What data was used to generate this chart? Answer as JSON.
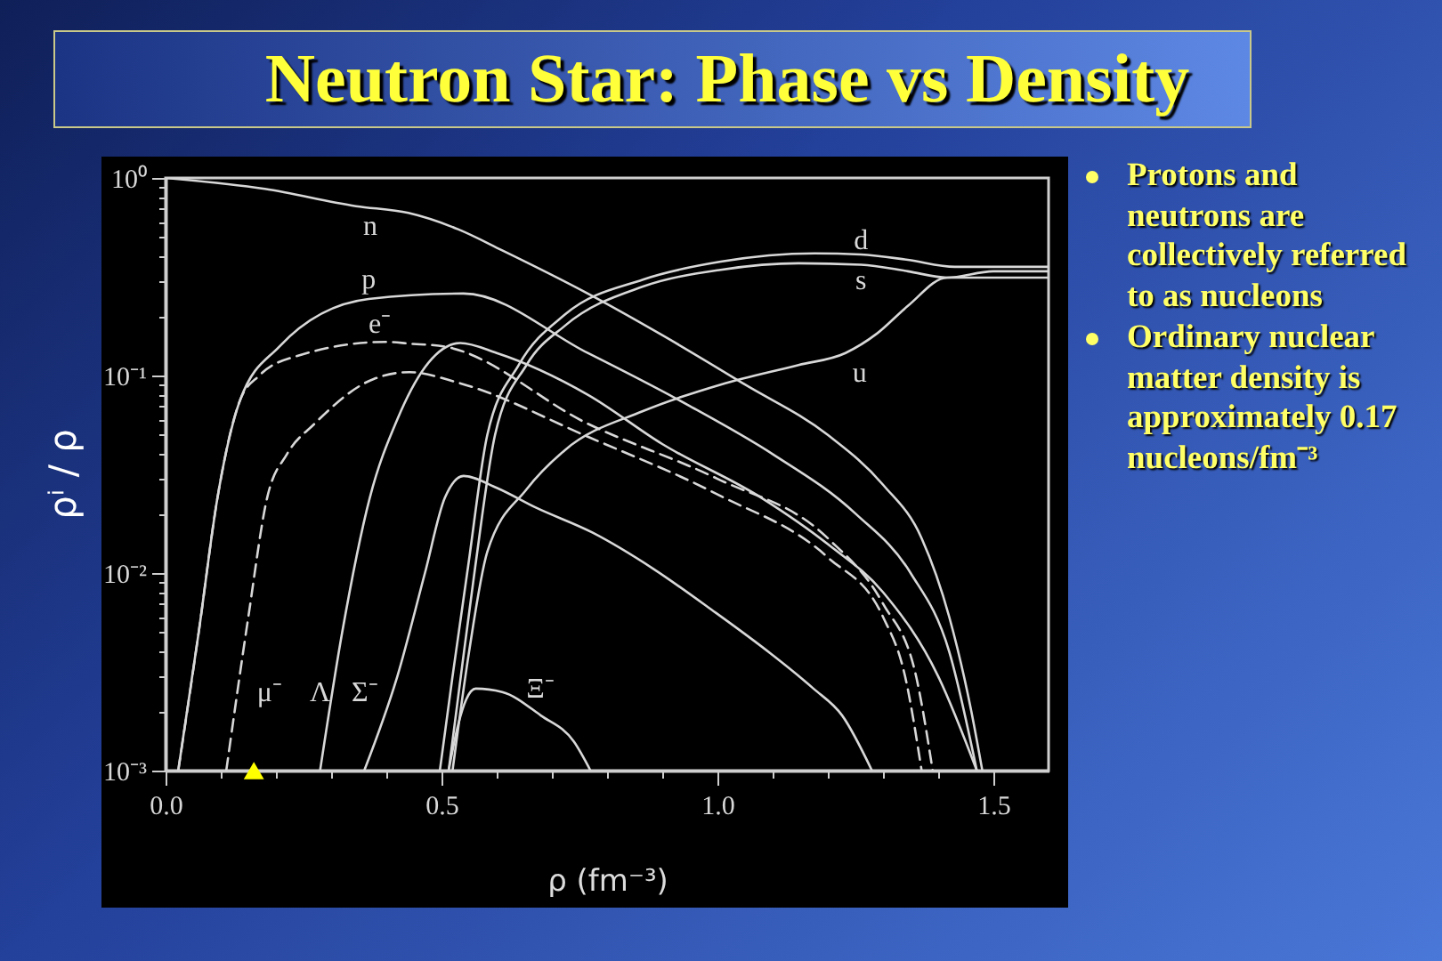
{
  "chart_data": {
    "type": "line",
    "title": "Neutron Star: Phase vs Density",
    "xlabel": "ρ (fm⁻³)",
    "ylabel": "ρⁱ / ρ",
    "annotations": [
      "Protons and neutrons are collectively referred to as nucleons",
      "Ordinary nuclear matter density is approximately 0.17 nucleons/fm⁻³"
    ],
    "xlim": [
      0,
      1.6
    ],
    "ylim": [
      0.001,
      1
    ],
    "log": "y",
    "grid": false,
    "legend": false,
    "marker": "none",
    "line_style": "solid",
    "xticks": [
      {
        "value": 0,
        "label": "0.0"
      },
      {
        "value": 0.1,
        "label": null
      },
      {
        "value": 0.2,
        "label": null
      },
      {
        "value": 0.3,
        "label": null
      },
      {
        "value": 0.4,
        "label": null
      },
      0.5,
      {
        "value": 0.6,
        "label": null
      },
      {
        "value": 0.7,
        "label": null
      },
      {
        "value": 0.8,
        "label": null
      },
      {
        "value": 0.9,
        "label": null
      },
      {
        "value": 1,
        "label": "1.0"
      },
      {
        "value": 1.1,
        "label": null
      },
      {
        "value": 1.2,
        "label": null
      },
      {
        "value": 1.3,
        "label": null
      },
      {
        "value": 1.4,
        "label": null
      },
      1.5
    ],
    "yticks": [
      {
        "value": 1,
        "label": "10⁰"
      },
      {
        "value": 0.9,
        "label": null
      },
      {
        "value": 0.8,
        "label": null
      },
      {
        "value": 0.7,
        "label": null
      },
      {
        "value": 0.6,
        "label": null
      },
      {
        "value": 0.5,
        "label": null
      },
      {
        "value": 0.4,
        "label": null
      },
      {
        "value": 0.3,
        "label": null
      },
      {
        "value": 0.2,
        "label": null
      },
      {
        "value": 0.1,
        "label": "10⁻¹"
      },
      {
        "value": 0.09,
        "label": null
      },
      {
        "value": 0.08,
        "label": null
      },
      {
        "value": 0.07,
        "label": null
      },
      {
        "value": 0.06,
        "label": null
      },
      {
        "value": 0.05,
        "label": null
      },
      {
        "value": 0.04,
        "label": null
      },
      {
        "value": 0.03,
        "label": null
      },
      {
        "value": 0.02,
        "label": null
      },
      {
        "value": 0.01,
        "label": "10⁻²"
      },
      {
        "value": 0.009,
        "label": null
      },
      {
        "value": 0.008,
        "label": null
      },
      {
        "value": 0.007,
        "label": null
      },
      {
        "value": 0.006,
        "label": null
      },
      {
        "value": 0.005,
        "label": null
      },
      {
        "value": 0.004,
        "label": null
      },
      {
        "value": 0.003,
        "label": null
      },
      {
        "value": 0.002,
        "label": null
      },
      {
        "value": 0.001,
        "label": "10⁻³"
      }
    ],
    "series": [
      {
        "name": "n",
        "color": "#d8d8d8",
        "x": [
          0,
          0.18,
          0.345,
          0.44,
          0.53,
          0.61,
          0.765,
          0.9,
          1.05,
          1.2,
          1.3,
          1.37,
          1.42,
          1.46,
          1.48
        ],
        "values": [
          1.0,
          0.88,
          0.72,
          0.665,
          0.55,
          0.43,
          0.26,
          0.16,
          0.09,
          0.05,
          0.028,
          0.015,
          0.006,
          0.002,
          0.001
        ]
      },
      {
        "name": "p",
        "color": "#d8d8d8",
        "x": [
          0.023,
          0.06,
          0.094,
          0.135,
          0.206,
          0.368,
          0.54,
          0.765,
          0.95,
          1.1,
          1.25,
          1.35,
          1.42,
          1.47
        ],
        "values": [
          0.001,
          0.005,
          0.024,
          0.075,
          0.14,
          0.244,
          0.26,
          0.13,
          0.07,
          0.04,
          0.02,
          0.01,
          0.004,
          0.001
        ]
      },
      {
        "name": "e⁻",
        "color": "#d8d8d8",
        "line_style": "dashed",
        "x": [
          0.023,
          0.06,
          0.094,
          0.135,
          0.17,
          0.24,
          0.4,
          0.442,
          0.506,
          0.765,
          1.0,
          1.2,
          1.3,
          1.36,
          1.39
        ],
        "values": [
          0.001,
          0.005,
          0.024,
          0.075,
          0.1,
          0.126,
          0.148,
          0.145,
          0.14,
          0.057,
          0.03,
          0.015,
          0.007,
          0.003,
          0.001
        ]
      },
      {
        "name": "μ⁻",
        "color": "#d8d8d8",
        "line_style": "dashed",
        "x": [
          0.11,
          0.15,
          0.184,
          0.22,
          0.27,
          0.377,
          0.442,
          0.53,
          0.765,
          1.0,
          1.2,
          1.3,
          1.34,
          1.37
        ],
        "values": [
          0.001,
          0.006,
          0.024,
          0.04,
          0.057,
          0.096,
          0.104,
          0.092,
          0.049,
          0.025,
          0.012,
          0.006,
          0.003,
          0.001
        ]
      },
      {
        "name": "Λ",
        "color": "#d8d8d8",
        "x": [
          0.28,
          0.32,
          0.37,
          0.42,
          0.47,
          0.534,
          0.6,
          0.765,
          0.9,
          1.08,
          1.2,
          1.3,
          1.4,
          1.47
        ],
        "values": [
          0.001,
          0.005,
          0.024,
          0.06,
          0.11,
          0.146,
          0.13,
          0.08,
          0.045,
          0.024,
          0.014,
          0.008,
          0.003,
          0.001
        ]
      },
      {
        "name": "Σ⁻",
        "color": "#d8d8d8",
        "x": [
          0.36,
          0.42,
          0.47,
          0.506,
          0.54,
          0.6,
          0.67,
          0.774,
          0.884,
          0.99,
          1.097,
          1.174,
          1.226,
          1.28
        ],
        "values": [
          0.001,
          0.003,
          0.01,
          0.024,
          0.031,
          0.027,
          0.0215,
          0.016,
          0.0105,
          0.0065,
          0.0039,
          0.0026,
          0.0019,
          0.001
        ]
      },
      {
        "name": "Ξ⁻",
        "color": "#d8d8d8",
        "x": [
          0.513,
          0.53,
          0.545,
          0.562,
          0.61,
          0.68,
          0.74,
          0.77
        ],
        "values": [
          0.001,
          0.0017,
          0.0023,
          0.0026,
          0.0025,
          0.0019,
          0.0014,
          0.001
        ]
      },
      {
        "name": "u",
        "color": "#d8d8d8",
        "x": [
          0.52,
          0.55,
          0.583,
          0.654,
          0.724,
          0.865,
          1.006,
          1.147,
          1.232,
          1.289,
          1.345,
          1.416,
          1.5,
          1.6
        ],
        "values": [
          0.001,
          0.004,
          0.0128,
          0.0265,
          0.042,
          0.066,
          0.09,
          0.113,
          0.13,
          0.163,
          0.225,
          0.313,
          0.313,
          0.313
        ]
      },
      {
        "name": "d",
        "color": "#d8d8d8",
        "x": [
          0.497,
          0.52,
          0.548,
          0.583,
          0.64,
          0.724,
          0.865,
          1.006,
          1.176,
          1.26,
          1.345,
          1.43,
          1.5,
          1.6
        ],
        "values": [
          0.001,
          0.003,
          0.0107,
          0.05,
          0.113,
          0.204,
          0.306,
          0.377,
          0.415,
          0.41,
          0.385,
          0.355,
          0.355,
          0.355
        ]
      },
      {
        "name": "s",
        "color": "#d8d8d8",
        "x": [
          0.513,
          0.535,
          0.561,
          0.597,
          0.654,
          0.724,
          0.865,
          1.006,
          1.147,
          1.26,
          1.345,
          1.416,
          1.5,
          1.6
        ],
        "values": [
          0.001,
          0.003,
          0.0107,
          0.05,
          0.113,
          0.179,
          0.282,
          0.343,
          0.37,
          0.364,
          0.337,
          0.313,
          0.337,
          0.337
        ]
      },
      {
        "type": "scatter",
        "marker": "triangle",
        "color": "#ffff00",
        "x": [
          0.16
        ],
        "values": [
          0.001
        ]
      }
    ]
  }
}
